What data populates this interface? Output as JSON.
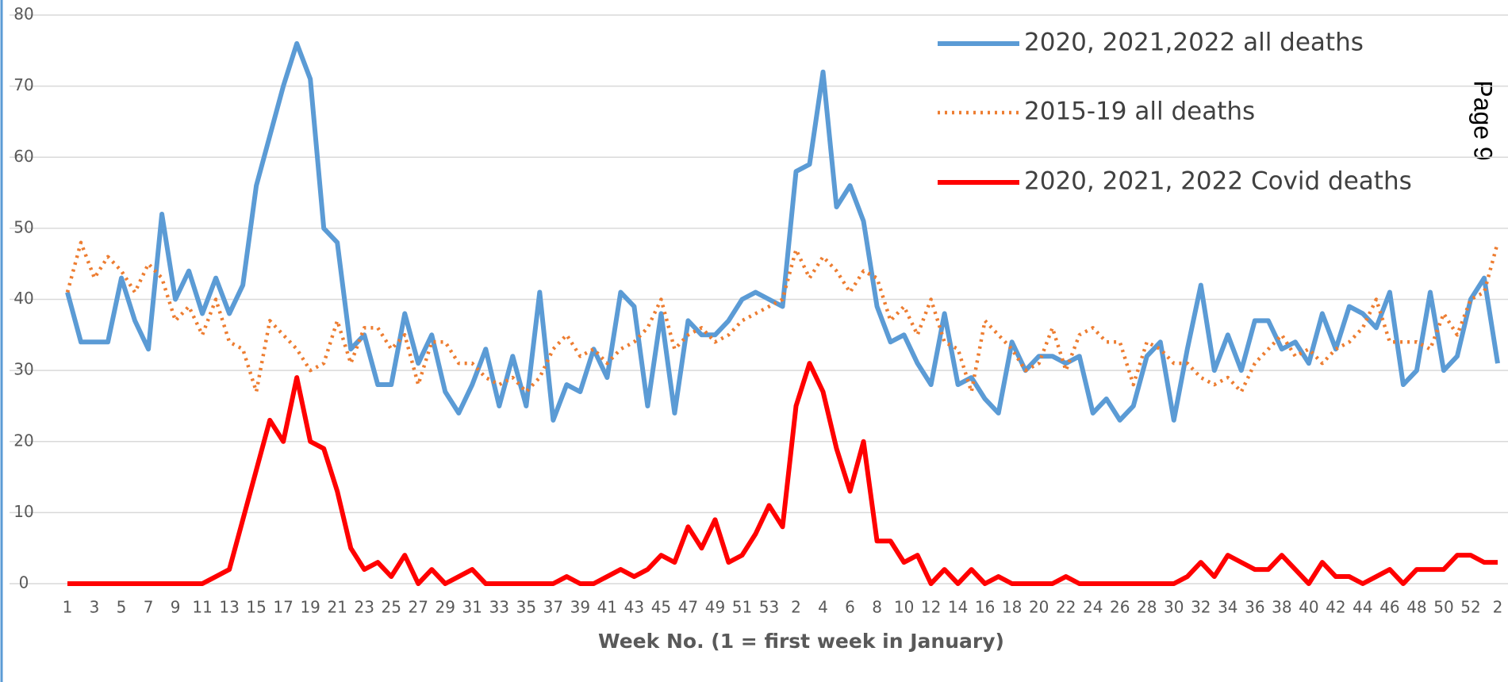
{
  "chart_data": {
    "type": "line",
    "x_label": "Week No. (1 = first week in January)",
    "page_label": "Page 9",
    "categories": [
      1,
      null,
      3,
      null,
      5,
      null,
      7,
      null,
      9,
      null,
      11,
      null,
      13,
      null,
      15,
      null,
      17,
      null,
      19,
      null,
      21,
      null,
      23,
      null,
      25,
      null,
      27,
      null,
      29,
      null,
      31,
      null,
      33,
      null,
      35,
      null,
      37,
      null,
      39,
      null,
      41,
      null,
      43,
      null,
      45,
      null,
      47,
      null,
      49,
      null,
      51,
      null,
      53,
      null,
      2,
      null,
      4,
      null,
      6,
      null,
      8,
      null,
      10,
      null,
      12,
      null,
      14,
      null,
      16,
      null,
      18,
      null,
      20,
      null,
      22,
      null,
      24,
      null,
      26,
      null,
      28,
      null,
      30,
      null,
      32,
      null,
      34,
      null,
      36,
      null,
      38,
      null,
      40,
      null,
      42,
      null,
      44,
      null,
      46,
      null,
      48,
      null,
      50,
      null,
      52,
      null,
      2
    ],
    "series": [
      {
        "name": "2020, 2021,2022 all deaths",
        "color": "#5b9bd5",
        "style": "solid",
        "values": [
          41,
          34,
          34,
          34,
          43,
          37,
          33,
          52,
          40,
          44,
          38,
          43,
          38,
          42,
          56,
          63,
          70,
          76,
          71,
          50,
          48,
          33,
          35,
          28,
          28,
          38,
          31,
          35,
          27,
          24,
          28,
          33,
          25,
          32,
          25,
          41,
          23,
          28,
          27,
          33,
          29,
          41,
          39,
          25,
          38,
          24,
          37,
          35,
          35,
          37,
          40,
          41,
          40,
          39,
          58,
          59,
          72,
          53,
          56,
          51,
          39,
          34,
          35,
          31,
          28,
          38,
          28,
          29,
          26,
          24,
          34,
          30,
          32,
          32,
          31,
          32,
          24,
          26,
          23,
          25,
          32,
          34,
          23,
          33,
          42,
          30,
          35,
          30,
          37,
          37,
          33,
          34,
          31,
          38,
          33,
          39,
          38,
          36,
          41,
          28,
          30,
          41,
          30,
          32,
          40,
          43,
          31
        ]
      },
      {
        "name": "2015-19 all deaths",
        "color": "#ed7d31",
        "style": "dotted",
        "values": [
          41,
          48,
          43,
          46,
          44,
          41,
          45,
          43,
          37,
          39,
          35,
          40,
          34,
          33,
          27,
          37,
          35,
          33,
          30,
          31,
          37,
          31,
          36,
          36,
          33,
          35,
          28,
          34,
          34,
          31,
          31,
          29,
          28,
          29,
          27,
          29,
          33,
          35,
          32,
          33,
          31,
          33,
          34,
          36,
          40,
          33,
          35,
          36,
          34,
          35,
          37,
          38,
          39,
          40,
          47,
          43,
          46,
          44,
          41,
          44,
          43,
          37,
          39,
          35,
          40,
          34,
          33,
          27,
          37,
          35,
          33,
          30,
          31,
          36,
          30,
          35,
          36,
          34,
          34,
          28,
          34,
          33,
          31,
          31,
          29,
          28,
          29,
          27,
          31,
          33,
          35,
          32,
          33,
          31,
          33,
          34,
          36,
          40,
          34,
          34,
          34,
          33,
          38,
          35,
          40,
          41,
          48
        ]
      },
      {
        "name": "2020, 2021, 2022 Covid deaths",
        "color": "#ff0000",
        "style": "solid",
        "values": [
          0,
          0,
          0,
          0,
          0,
          0,
          0,
          0,
          0,
          0,
          0,
          1,
          2,
          9,
          16,
          23,
          20,
          29,
          20,
          19,
          13,
          5,
          2,
          3,
          1,
          4,
          0,
          2,
          0,
          1,
          2,
          0,
          0,
          0,
          0,
          0,
          0,
          1,
          0,
          0,
          1,
          2,
          1,
          2,
          4,
          3,
          8,
          5,
          9,
          3,
          4,
          7,
          11,
          8,
          25,
          31,
          27,
          19,
          13,
          20,
          6,
          6,
          3,
          4,
          0,
          2,
          0,
          2,
          0,
          1,
          0,
          0,
          0,
          0,
          1,
          0,
          0,
          0,
          0,
          0,
          0,
          0,
          0,
          1,
          3,
          1,
          4,
          3,
          2,
          2,
          4,
          2,
          0,
          3,
          1,
          1,
          0,
          1,
          2,
          0,
          2,
          2,
          2,
          4,
          4,
          3,
          3
        ]
      }
    ],
    "ylim": [
      0,
      80
    ],
    "yticks": [
      0,
      10,
      20,
      30,
      40,
      50,
      60,
      70,
      80
    ],
    "grid": true,
    "legend": "upper right"
  }
}
